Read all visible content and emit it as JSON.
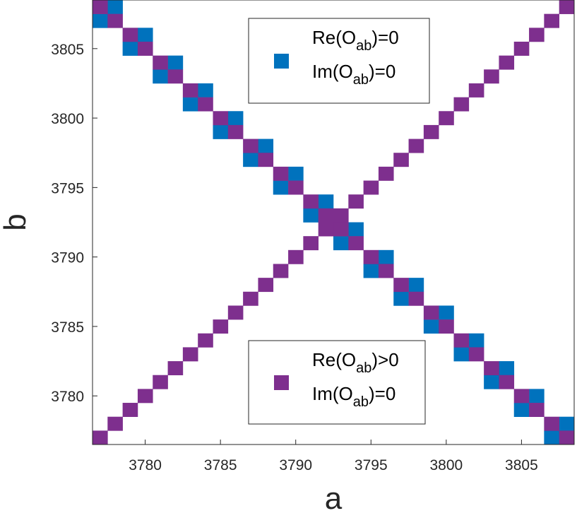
{
  "chart_data": {
    "type": "heatmap",
    "xlabel": "a",
    "ylabel": "b",
    "xlim": [
      3776.5,
      3808.5
    ],
    "ylim": [
      3776.5,
      3808.5
    ],
    "x_ticks": [
      3780,
      3785,
      3790,
      3795,
      3800,
      3805
    ],
    "y_ticks": [
      3780,
      3785,
      3790,
      3795,
      3800,
      3805
    ],
    "grid": false,
    "colors": {
      "re_zero": "#0072BD",
      "re_positive": "#7E2F8E"
    },
    "legends": [
      {
        "position": "top-right",
        "marker_color": "#0072BD",
        "lines": [
          {
            "pre": "Re(O",
            "sub": "ab",
            "post": ")=0"
          },
          {
            "pre": "Im(O",
            "sub": "ab",
            "post": ")=0"
          }
        ]
      },
      {
        "position": "bottom-right",
        "marker_color": "#7E2F8E",
        "lines": [
          {
            "pre": "Re(O",
            "sub": "ab",
            "post": ")>0"
          },
          {
            "pre": "Im(O",
            "sub": "ab",
            "post": ")=0"
          }
        ]
      }
    ],
    "series": [
      {
        "name": "Re(Oab)=0, Im(Oab)=0",
        "color": "#0072BD",
        "points": [
          [
            3777,
            3807
          ],
          [
            3778,
            3808
          ],
          [
            3779,
            3805
          ],
          [
            3780,
            3806
          ],
          [
            3781,
            3803
          ],
          [
            3782,
            3804
          ],
          [
            3783,
            3801
          ],
          [
            3784,
            3802
          ],
          [
            3785,
            3799
          ],
          [
            3786,
            3800
          ],
          [
            3787,
            3797
          ],
          [
            3788,
            3798
          ],
          [
            3789,
            3795
          ],
          [
            3790,
            3796
          ],
          [
            3791,
            3793
          ],
          [
            3792,
            3794
          ],
          [
            3793,
            3791
          ],
          [
            3794,
            3792
          ],
          [
            3795,
            3789
          ],
          [
            3796,
            3790
          ],
          [
            3797,
            3787
          ],
          [
            3798,
            3788
          ],
          [
            3799,
            3785
          ],
          [
            3800,
            3786
          ],
          [
            3801,
            3783
          ],
          [
            3802,
            3784
          ],
          [
            3803,
            3781
          ],
          [
            3804,
            3782
          ],
          [
            3805,
            3779
          ],
          [
            3806,
            3780
          ],
          [
            3807,
            3777
          ],
          [
            3808,
            3778
          ]
        ]
      },
      {
        "name": "Re(Oab)>0, Im(Oab)=0",
        "color": "#7E2F8E",
        "points": [
          [
            3777,
            3808
          ],
          [
            3778,
            3807
          ],
          [
            3779,
            3806
          ],
          [
            3780,
            3805
          ],
          [
            3781,
            3804
          ],
          [
            3782,
            3803
          ],
          [
            3783,
            3802
          ],
          [
            3784,
            3801
          ],
          [
            3785,
            3800
          ],
          [
            3786,
            3799
          ],
          [
            3787,
            3798
          ],
          [
            3788,
            3797
          ],
          [
            3789,
            3796
          ],
          [
            3790,
            3795
          ],
          [
            3791,
            3794
          ],
          [
            3792,
            3793
          ],
          [
            3793,
            3792
          ],
          [
            3794,
            3791
          ],
          [
            3795,
            3790
          ],
          [
            3796,
            3789
          ],
          [
            3797,
            3788
          ],
          [
            3798,
            3787
          ],
          [
            3799,
            3786
          ],
          [
            3800,
            3785
          ],
          [
            3801,
            3784
          ],
          [
            3802,
            3783
          ],
          [
            3803,
            3782
          ],
          [
            3804,
            3781
          ],
          [
            3805,
            3780
          ],
          [
            3806,
            3779
          ],
          [
            3807,
            3778
          ],
          [
            3808,
            3777
          ],
          [
            3777,
            3777
          ],
          [
            3778,
            3778
          ],
          [
            3779,
            3779
          ],
          [
            3780,
            3780
          ],
          [
            3781,
            3781
          ],
          [
            3782,
            3782
          ],
          [
            3783,
            3783
          ],
          [
            3784,
            3784
          ],
          [
            3785,
            3785
          ],
          [
            3786,
            3786
          ],
          [
            3787,
            3787
          ],
          [
            3788,
            3788
          ],
          [
            3789,
            3789
          ],
          [
            3790,
            3790
          ],
          [
            3791,
            3791
          ],
          [
            3792,
            3792
          ],
          [
            3793,
            3793
          ],
          [
            3794,
            3794
          ],
          [
            3795,
            3795
          ],
          [
            3796,
            3796
          ],
          [
            3797,
            3797
          ],
          [
            3798,
            3798
          ],
          [
            3799,
            3799
          ],
          [
            3800,
            3800
          ],
          [
            3801,
            3801
          ],
          [
            3802,
            3802
          ],
          [
            3803,
            3803
          ],
          [
            3804,
            3804
          ],
          [
            3805,
            3805
          ],
          [
            3806,
            3806
          ],
          [
            3807,
            3807
          ],
          [
            3808,
            3808
          ]
        ]
      }
    ]
  }
}
